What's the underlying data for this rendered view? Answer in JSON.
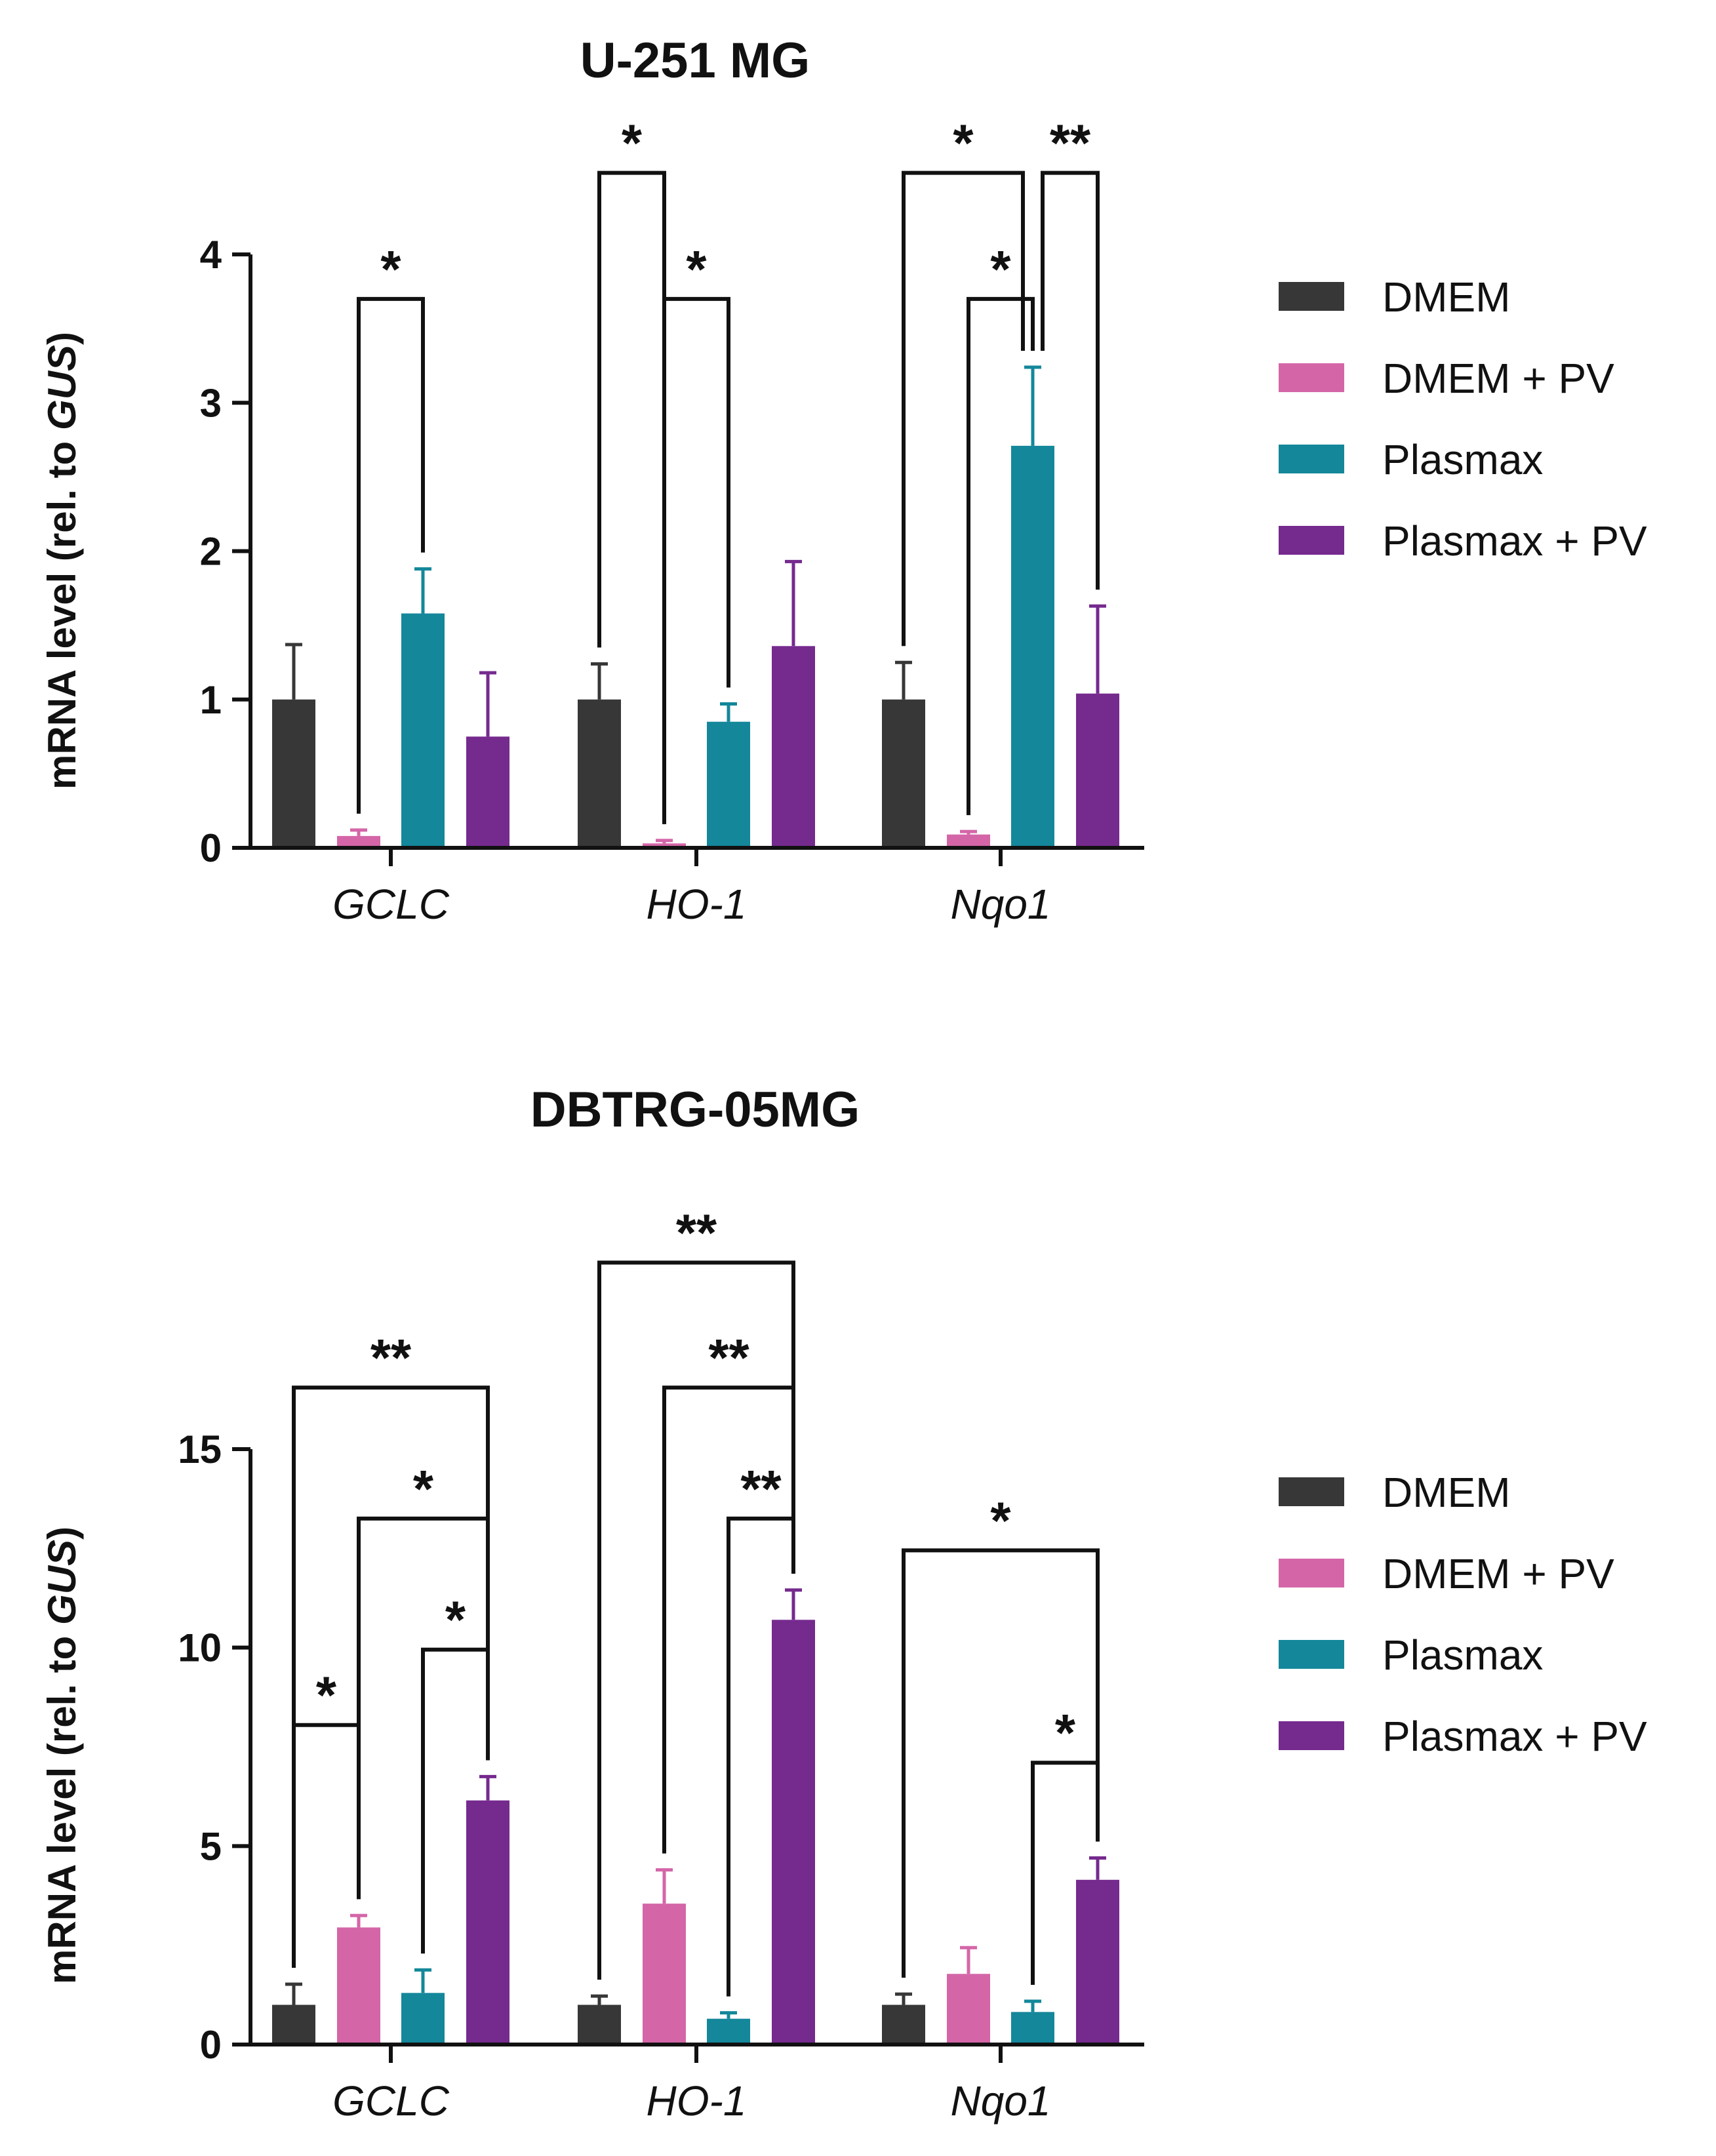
{
  "series_colors": {
    "DMEM": "#373737",
    "DMEM + PV": "#d466a8",
    "Plasmax": "#14879a",
    "Plasmax + PV": "#752a8e"
  },
  "chart_data": [
    {
      "type": "bar",
      "title": "U-251 MG",
      "ylabel_prefix": "mRNA level (rel. to ",
      "ylabel_italic": "GUS",
      "ylabel_suffix": ")",
      "ylim": [
        0,
        4
      ],
      "yticks": [
        0,
        1,
        2,
        3,
        4
      ],
      "categories": [
        "GCLC",
        "HO-1",
        "Nqo1"
      ],
      "series": [
        {
          "name": "DMEM",
          "values": [
            1.0,
            1.0,
            1.0
          ],
          "errors": [
            0.37,
            0.24,
            0.25
          ]
        },
        {
          "name": "DMEM + PV",
          "values": [
            0.08,
            0.03,
            0.09
          ],
          "errors": [
            0.04,
            0.02,
            0.02
          ]
        },
        {
          "name": "Plasmax",
          "values": [
            1.58,
            0.85,
            2.71
          ],
          "errors": [
            0.3,
            0.12,
            0.53
          ]
        },
        {
          "name": "Plasmax + PV",
          "values": [
            0.75,
            1.36,
            1.04
          ],
          "errors": [
            0.43,
            0.57,
            0.59
          ]
        }
      ],
      "legend": [
        "DMEM",
        "DMEM + PV",
        "Plasmax",
        "Plasmax + PV"
      ],
      "annotations": [
        {
          "label": "*",
          "category": 0,
          "from": 1,
          "to": 2,
          "level": 3.7
        },
        {
          "label": "*",
          "category": 1,
          "from": 0,
          "to": 1,
          "level": 4.55
        },
        {
          "label": "*",
          "category": 1,
          "from": 1,
          "to": 2,
          "level": 3.7
        },
        {
          "label": "*",
          "category": 2,
          "from": 1,
          "to": 2,
          "level": 3.7
        },
        {
          "label": "*",
          "category": 2,
          "from": 0,
          "to": 2,
          "level": 4.55,
          "right_gap": true
        },
        {
          "label": "**",
          "category": 2,
          "from": 2,
          "to": 3,
          "level": 4.55,
          "left_gap": true
        }
      ]
    },
    {
      "type": "bar",
      "title": "DBTRG-05MG",
      "ylabel_prefix": "mRNA level (rel. to ",
      "ylabel_italic": "GUS",
      "ylabel_suffix": ")",
      "ylim": [
        0,
        15
      ],
      "yticks": [
        0,
        5,
        10,
        15
      ],
      "categories": [
        "GCLC",
        "HO-1",
        "Nqo1"
      ],
      "series": [
        {
          "name": "DMEM",
          "values": [
            1.0,
            1.0,
            1.0
          ],
          "errors": [
            0.52,
            0.22,
            0.27
          ]
        },
        {
          "name": "DMEM + PV",
          "values": [
            2.95,
            3.55,
            1.78
          ],
          "errors": [
            0.3,
            0.85,
            0.66
          ]
        },
        {
          "name": "Plasmax",
          "values": [
            1.3,
            0.65,
            0.82
          ],
          "errors": [
            0.58,
            0.15,
            0.27
          ]
        },
        {
          "name": "Plasmax + PV",
          "values": [
            6.15,
            10.7,
            4.15
          ],
          "errors": [
            0.6,
            0.75,
            0.55
          ]
        }
      ],
      "legend": [
        "DMEM",
        "DMEM + PV",
        "Plasmax",
        "Plasmax + PV"
      ],
      "annotations": [
        {
          "label": "*",
          "category": 0,
          "from": 0,
          "to": 1,
          "level": 8.05
        },
        {
          "label": "*",
          "category": 0,
          "from": 2,
          "to": 3,
          "level": 9.95
        },
        {
          "label": "*",
          "category": 0,
          "from": 1,
          "to": 3,
          "level": 13.25
        },
        {
          "label": "**",
          "category": 0,
          "from": 0,
          "to": 3,
          "level": 16.55
        },
        {
          "label": "**",
          "category": 1,
          "from": 2,
          "to": 3,
          "level": 13.25
        },
        {
          "label": "**",
          "category": 1,
          "from": 1,
          "to": 3,
          "level": 16.55
        },
        {
          "label": "**",
          "category": 1,
          "from": 0,
          "to": 3,
          "level": 19.7
        },
        {
          "label": "*",
          "category": 2,
          "from": 2,
          "to": 3,
          "level": 7.1
        },
        {
          "label": "*",
          "category": 2,
          "from": 0,
          "to": 3,
          "level": 12.45
        }
      ]
    }
  ]
}
